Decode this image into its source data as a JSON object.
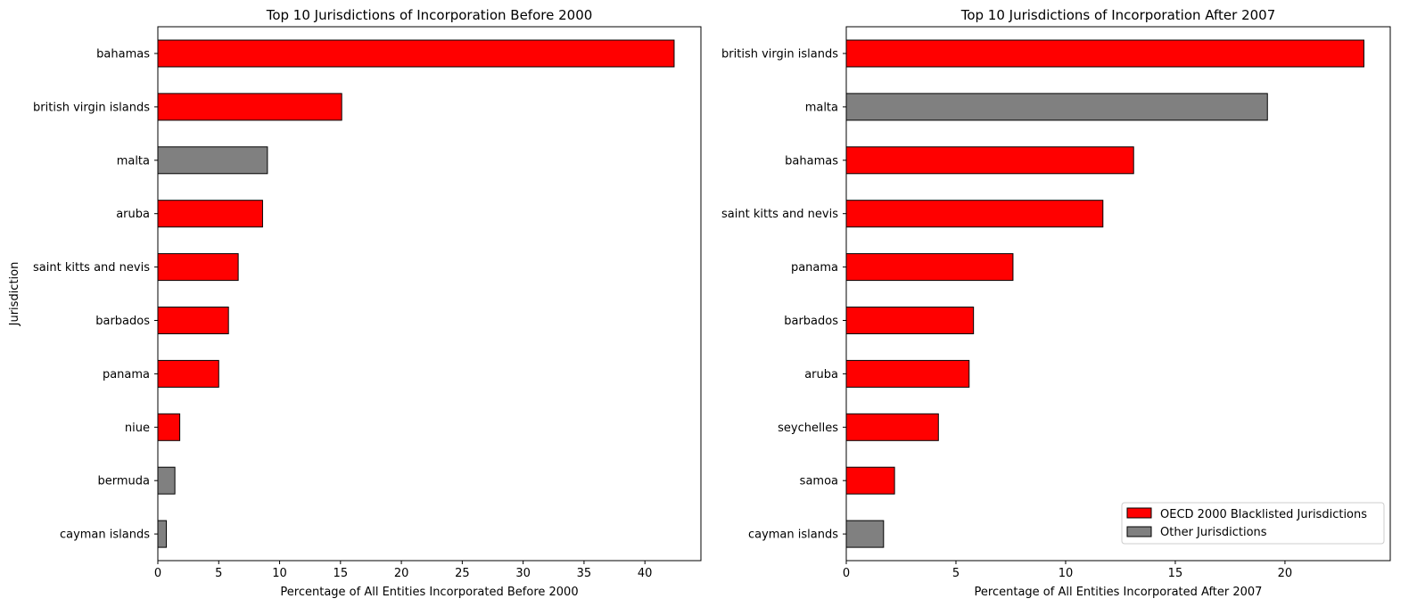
{
  "colors": {
    "blacklisted": "#ff0000",
    "other": "#808080",
    "edge": "#000000"
  },
  "legend": {
    "items": [
      {
        "label": "OECD 2000 Blacklisted Jurisdictions",
        "color": "#ff0000"
      },
      {
        "label": "Other Jurisdictions",
        "color": "#808080"
      }
    ],
    "placement": "lower-right"
  },
  "chart_data": [
    {
      "type": "bar",
      "orientation": "horizontal",
      "title": "Top 10 Jurisdictions of Incorporation Before 2000",
      "xlabel": "Percentage of All Entities Incorporated Before 2000",
      "ylabel": "Jurisdiction",
      "xlim": [
        0,
        44.6
      ],
      "xticks": [
        0,
        5,
        10,
        15,
        20,
        25,
        30,
        35,
        40
      ],
      "grid": false,
      "categories": [
        "bahamas",
        "british virgin islands",
        "malta",
        "aruba",
        "saint kitts and nevis",
        "barbados",
        "panama",
        "niue",
        "bermuda",
        "cayman islands"
      ],
      "values": [
        42.4,
        15.1,
        9.0,
        8.6,
        6.6,
        5.8,
        5.0,
        1.8,
        1.4,
        0.7
      ],
      "blacklisted": [
        true,
        true,
        false,
        true,
        true,
        true,
        true,
        true,
        false,
        false
      ]
    },
    {
      "type": "bar",
      "orientation": "horizontal",
      "title": "Top 10 Jurisdictions of Incorporation After 2007",
      "xlabel": "Percentage of All Entities Incorporated After 2007",
      "ylabel": "",
      "xlim": [
        0,
        24.8
      ],
      "xticks": [
        0,
        5,
        10,
        15,
        20
      ],
      "grid": false,
      "categories": [
        "british virgin islands",
        "malta",
        "bahamas",
        "saint kitts and nevis",
        "panama",
        "barbados",
        "aruba",
        "seychelles",
        "samoa",
        "cayman islands"
      ],
      "values": [
        23.6,
        19.2,
        13.1,
        11.7,
        7.6,
        5.8,
        5.6,
        4.2,
        2.2,
        1.7
      ],
      "blacklisted": [
        true,
        false,
        true,
        true,
        true,
        true,
        true,
        true,
        true,
        false
      ]
    }
  ]
}
